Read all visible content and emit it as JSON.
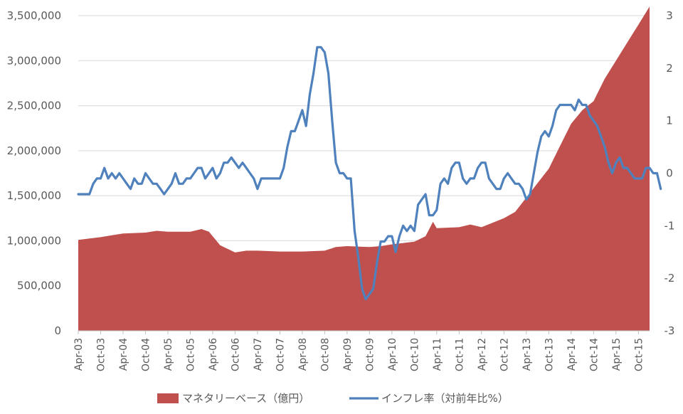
{
  "chart_data": {
    "type": "area+line",
    "grid": "horizontal",
    "legend_placement": "bottom",
    "x_tick_labels": [
      "Apr-03",
      "Oct-03",
      "Apr-04",
      "Oct-04",
      "Apr-05",
      "Oct-05",
      "Apr-06",
      "Oct-06",
      "Apr-07",
      "Oct-07",
      "Apr-08",
      "Oct-08",
      "Apr-09",
      "Oct-09",
      "Apr-10",
      "Oct-10",
      "Apr-11",
      "Oct-11",
      "Apr-12",
      "Oct-12",
      "Apr-13",
      "Oct-13",
      "Apr-14",
      "Oct-14",
      "Apr-15",
      "Oct-15"
    ],
    "x_start": "Apr-03",
    "x_end": "Jan-16",
    "y_left": {
      "min": 0,
      "max": 3500000,
      "ticks": [
        0,
        500000,
        1000000,
        1500000,
        2000000,
        2500000,
        3000000,
        3500000
      ],
      "tick_labels": [
        "0",
        "500,000",
        "1,000,000",
        "1,500,000",
        "2,000,000",
        "2,500,000",
        "3,000,000",
        "3,500,000"
      ]
    },
    "y_right": {
      "min": -3,
      "max": 3,
      "ticks": [
        -3,
        -2,
        -1,
        0,
        1,
        2,
        3
      ],
      "tick_labels": [
        "-3",
        "-2",
        "-1",
        "0",
        "1",
        "2",
        "3"
      ]
    },
    "series": [
      {
        "name": "マネタリーベース（億円）",
        "type": "area",
        "axis": "left",
        "color": "#C0504D",
        "points": [
          [
            "Apr-03",
            1010000
          ],
          [
            "Oct-03",
            1040000
          ],
          [
            "Jan-04",
            1060000
          ],
          [
            "Apr-04",
            1080000
          ],
          [
            "Oct-04",
            1090000
          ],
          [
            "Jan-05",
            1110000
          ],
          [
            "Apr-05",
            1100000
          ],
          [
            "Oct-05",
            1100000
          ],
          [
            "Jan-06",
            1130000
          ],
          [
            "Mar-06",
            1100000
          ],
          [
            "Jun-06",
            950000
          ],
          [
            "Oct-06",
            870000
          ],
          [
            "Jan-07",
            890000
          ],
          [
            "Apr-07",
            890000
          ],
          [
            "Oct-07",
            880000
          ],
          [
            "Apr-08",
            880000
          ],
          [
            "Oct-08",
            890000
          ],
          [
            "Jan-09",
            930000
          ],
          [
            "Apr-09",
            940000
          ],
          [
            "Oct-09",
            930000
          ],
          [
            "Jan-10",
            940000
          ],
          [
            "Apr-10",
            960000
          ],
          [
            "Oct-10",
            990000
          ],
          [
            "Jan-11",
            1050000
          ],
          [
            "Mar-11",
            1210000
          ],
          [
            "Apr-11",
            1140000
          ],
          [
            "Oct-11",
            1150000
          ],
          [
            "Jan-12",
            1180000
          ],
          [
            "Apr-12",
            1150000
          ],
          [
            "Oct-12",
            1250000
          ],
          [
            "Jan-13",
            1320000
          ],
          [
            "Apr-13",
            1480000
          ],
          [
            "Oct-13",
            1800000
          ],
          [
            "Jan-14",
            2050000
          ],
          [
            "Apr-14",
            2300000
          ],
          [
            "Jul-14",
            2450000
          ],
          [
            "Oct-14",
            2550000
          ],
          [
            "Jan-15",
            2800000
          ],
          [
            "Apr-15",
            3000000
          ],
          [
            "Jul-15",
            3200000
          ],
          [
            "Oct-15",
            3400000
          ],
          [
            "Jan-16",
            3600000
          ]
        ]
      },
      {
        "name": "インフレ率（対前年比%）",
        "type": "line",
        "axis": "right",
        "color": "#4F81BD",
        "points": [
          [
            "Apr-03",
            -0.4
          ],
          [
            "Jul-03",
            -0.4
          ],
          [
            "Aug-03",
            -0.2
          ],
          [
            "Sep-03",
            -0.1
          ],
          [
            "Oct-03",
            -0.1
          ],
          [
            "Nov-03",
            0.1
          ],
          [
            "Dec-03",
            -0.1
          ],
          [
            "Jan-04",
            0.0
          ],
          [
            "Feb-04",
            -0.1
          ],
          [
            "Mar-04",
            0.0
          ],
          [
            "Apr-04",
            -0.1
          ],
          [
            "May-04",
            -0.2
          ],
          [
            "Jun-04",
            -0.3
          ],
          [
            "Jul-04",
            -0.1
          ],
          [
            "Aug-04",
            -0.2
          ],
          [
            "Sep-04",
            -0.2
          ],
          [
            "Oct-04",
            0.0
          ],
          [
            "Nov-04",
            -0.1
          ],
          [
            "Dec-04",
            -0.2
          ],
          [
            "Jan-05",
            -0.2
          ],
          [
            "Feb-05",
            -0.3
          ],
          [
            "Mar-05",
            -0.4
          ],
          [
            "Apr-05",
            -0.3
          ],
          [
            "May-05",
            -0.2
          ],
          [
            "Jun-05",
            0.0
          ],
          [
            "Jul-05",
            -0.2
          ],
          [
            "Aug-05",
            -0.2
          ],
          [
            "Sep-05",
            -0.1
          ],
          [
            "Oct-05",
            -0.1
          ],
          [
            "Nov-05",
            0.0
          ],
          [
            "Dec-05",
            0.1
          ],
          [
            "Jan-06",
            0.1
          ],
          [
            "Feb-06",
            -0.1
          ],
          [
            "Mar-06",
            0.0
          ],
          [
            "Apr-06",
            0.1
          ],
          [
            "May-06",
            -0.1
          ],
          [
            "Jun-06",
            0.0
          ],
          [
            "Jul-06",
            0.2
          ],
          [
            "Aug-06",
            0.2
          ],
          [
            "Sep-06",
            0.3
          ],
          [
            "Oct-06",
            0.2
          ],
          [
            "Nov-06",
            0.1
          ],
          [
            "Dec-06",
            0.2
          ],
          [
            "Jan-07",
            0.1
          ],
          [
            "Feb-07",
            0.0
          ],
          [
            "Mar-07",
            -0.1
          ],
          [
            "Apr-07",
            -0.3
          ],
          [
            "May-07",
            -0.1
          ],
          [
            "Jun-07",
            -0.1
          ],
          [
            "Jul-07",
            -0.1
          ],
          [
            "Aug-07",
            -0.1
          ],
          [
            "Sep-07",
            -0.1
          ],
          [
            "Oct-07",
            -0.1
          ],
          [
            "Nov-07",
            0.1
          ],
          [
            "Dec-07",
            0.5
          ],
          [
            "Jan-08",
            0.8
          ],
          [
            "Feb-08",
            0.8
          ],
          [
            "Mar-08",
            1.0
          ],
          [
            "Apr-08",
            1.2
          ],
          [
            "May-08",
            0.9
          ],
          [
            "Jun-08",
            1.5
          ],
          [
            "Jul-08",
            1.9
          ],
          [
            "Aug-08",
            2.4
          ],
          [
            "Sep-08",
            2.4
          ],
          [
            "Oct-08",
            2.3
          ],
          [
            "Nov-08",
            1.9
          ],
          [
            "Dec-08",
            1.0
          ],
          [
            "Jan-09",
            0.2
          ],
          [
            "Feb-09",
            0.0
          ],
          [
            "Mar-09",
            0.0
          ],
          [
            "Apr-09",
            -0.1
          ],
          [
            "May-09",
            -0.1
          ],
          [
            "Jun-09",
            -1.1
          ],
          [
            "Jul-09",
            -1.6
          ],
          [
            "Aug-09",
            -2.2
          ],
          [
            "Sep-09",
            -2.4
          ],
          [
            "Oct-09",
            -2.3
          ],
          [
            "Nov-09",
            -2.2
          ],
          [
            "Dec-09",
            -1.7
          ],
          [
            "Jan-10",
            -1.3
          ],
          [
            "Feb-10",
            -1.3
          ],
          [
            "Mar-10",
            -1.2
          ],
          [
            "Apr-10",
            -1.2
          ],
          [
            "May-10",
            -1.5
          ],
          [
            "Jun-10",
            -1.2
          ],
          [
            "Jul-10",
            -1.0
          ],
          [
            "Aug-10",
            -1.1
          ],
          [
            "Sep-10",
            -1.0
          ],
          [
            "Oct-10",
            -1.1
          ],
          [
            "Nov-10",
            -0.6
          ],
          [
            "Dec-10",
            -0.5
          ],
          [
            "Jan-11",
            -0.4
          ],
          [
            "Feb-11",
            -0.8
          ],
          [
            "Mar-11",
            -0.8
          ],
          [
            "Apr-11",
            -0.7
          ],
          [
            "May-11",
            -0.2
          ],
          [
            "Jun-11",
            -0.1
          ],
          [
            "Jul-11",
            -0.2
          ],
          [
            "Aug-11",
            0.1
          ],
          [
            "Sep-11",
            0.2
          ],
          [
            "Oct-11",
            0.2
          ],
          [
            "Nov-11",
            -0.1
          ],
          [
            "Dec-11",
            -0.2
          ],
          [
            "Jan-12",
            -0.1
          ],
          [
            "Feb-12",
            -0.1
          ],
          [
            "Mar-12",
            0.1
          ],
          [
            "Apr-12",
            0.2
          ],
          [
            "May-12",
            0.2
          ],
          [
            "Jun-12",
            -0.1
          ],
          [
            "Jul-12",
            -0.2
          ],
          [
            "Aug-12",
            -0.3
          ],
          [
            "Sep-12",
            -0.3
          ],
          [
            "Oct-12",
            -0.1
          ],
          [
            "Nov-12",
            0.0
          ],
          [
            "Dec-12",
            -0.1
          ],
          [
            "Jan-13",
            -0.2
          ],
          [
            "Feb-13",
            -0.2
          ],
          [
            "Mar-13",
            -0.3
          ],
          [
            "Apr-13",
            -0.5
          ],
          [
            "May-13",
            -0.4
          ],
          [
            "Jun-13",
            0.0
          ],
          [
            "Jul-13",
            0.4
          ],
          [
            "Aug-13",
            0.7
          ],
          [
            "Sep-13",
            0.8
          ],
          [
            "Oct-13",
            0.7
          ],
          [
            "Nov-13",
            0.9
          ],
          [
            "Dec-13",
            1.2
          ],
          [
            "Jan-14",
            1.3
          ],
          [
            "Feb-14",
            1.3
          ],
          [
            "Mar-14",
            1.3
          ],
          [
            "Apr-14",
            1.3
          ],
          [
            "May-14",
            1.2
          ],
          [
            "Jun-14",
            1.4
          ],
          [
            "Jul-14",
            1.3
          ],
          [
            "Aug-14",
            1.3
          ],
          [
            "Sep-14",
            1.1
          ],
          [
            "Oct-14",
            1.0
          ],
          [
            "Nov-14",
            0.9
          ],
          [
            "Dec-14",
            0.7
          ],
          [
            "Jan-15",
            0.5
          ],
          [
            "Feb-15",
            0.2
          ],
          [
            "Mar-15",
            0.0
          ],
          [
            "Apr-15",
            0.2
          ],
          [
            "May-15",
            0.3
          ],
          [
            "Jun-15",
            0.1
          ],
          [
            "Jul-15",
            0.1
          ],
          [
            "Aug-15",
            0.0
          ],
          [
            "Sep-15",
            -0.1
          ],
          [
            "Oct-15",
            -0.1
          ],
          [
            "Nov-15",
            -0.1
          ],
          [
            "Dec-15",
            0.1
          ],
          [
            "Jan-16",
            0.1
          ],
          [
            "Feb-16",
            0.0
          ],
          [
            "Mar-16",
            0.0
          ],
          [
            "Apr-16",
            -0.3
          ]
        ]
      }
    ]
  }
}
